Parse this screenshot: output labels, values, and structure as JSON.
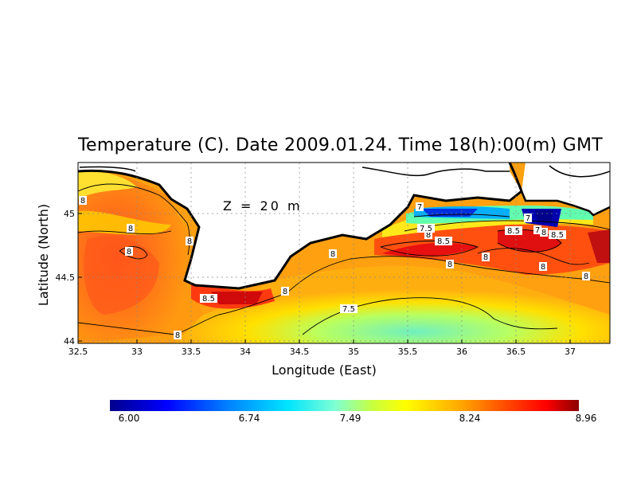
{
  "title": "Temperature (C). Date 2009.01.24. Time 18(h):00(m) GMT",
  "depth_label": "Z = 20 m",
  "axes": {
    "xlabel": "Longitude (East)",
    "ylabel": "Latitude (North)",
    "x_ticks": [
      "32.5",
      "33",
      "33.5",
      "34",
      "34.5",
      "35",
      "35.5",
      "36",
      "36.5",
      "37"
    ],
    "y_ticks": [
      "44",
      "44.5",
      "45"
    ]
  },
  "contour_labels": [
    "8",
    "8",
    "8",
    "8",
    "8",
    "8.5",
    "8",
    "8",
    "7.5",
    "8",
    "8",
    "8.5",
    "8",
    "7",
    "7",
    "8.5",
    "7",
    "8",
    "8.5",
    "8",
    "8",
    "7.5"
  ],
  "colorbar": {
    "ticks": [
      "6.00",
      "6.74",
      "7.49",
      "8.24",
      "8.96"
    ],
    "colors": [
      "#00008b",
      "#0000ff",
      "#0080ff",
      "#00e5ff",
      "#7fffd4",
      "#c8ff40",
      "#ffff00",
      "#ffa500",
      "#ff4500",
      "#ff0000",
      "#8b0000"
    ]
  }
}
